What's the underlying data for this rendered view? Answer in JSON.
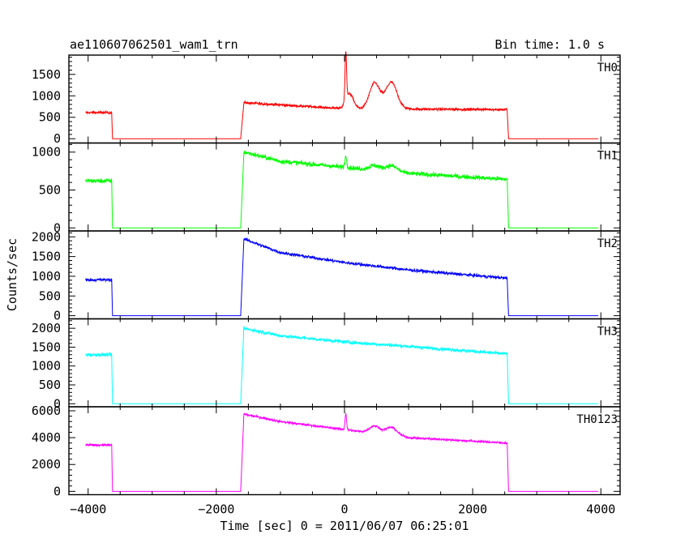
{
  "chart_data": {
    "type": "line",
    "title": "ae110607062501_wam1_trn",
    "bin_time_label": "Bin time: 1.0 s",
    "xlabel": "Time [sec] 0 = 2011/06/07 06:25:01",
    "ylabel": "Counts/sec",
    "xlim": [
      -4300,
      4300
    ],
    "x_ticks": [
      -4000,
      -2000,
      0,
      2000,
      4000
    ],
    "x_tick_labels": [
      "−4000",
      "−2000",
      "0",
      "2000",
      "4000"
    ],
    "grid": false,
    "panels": [
      {
        "name": "TH0",
        "color": "#ff0000",
        "ylim": [
          -100,
          1950
        ],
        "y_ticks": [
          0,
          500,
          1000,
          1500
        ],
        "noise": 30,
        "segments": [
          {
            "x": [
              -4040,
              -3630
            ],
            "y": [
              610,
              610
            ]
          },
          {
            "x": [
              -3620,
              -1600
            ],
            "y": [
              0,
              0
            ]
          },
          {
            "x": [
              -1570,
              0,
              2540
            ],
            "y": [
              840,
              700,
              680
            ]
          },
          {
            "x": [
              2560,
              4000
            ],
            "y": [
              0,
              0
            ]
          }
        ],
        "peaks": [
          {
            "x": 20,
            "amp": 1150,
            "width": 12
          },
          {
            "x": 80,
            "amp": 350,
            "width": 60
          },
          {
            "x": 470,
            "amp": 600,
            "width": 80
          },
          {
            "x": 730,
            "amp": 620,
            "width": 90
          }
        ]
      },
      {
        "name": "TH1",
        "color": "#00ff00",
        "ylim": [
          -40,
          1120
        ],
        "y_ticks": [
          0,
          500,
          1000
        ],
        "noise": 30,
        "segments": [
          {
            "x": [
              -4040,
              -3630
            ],
            "y": [
              620,
              620
            ]
          },
          {
            "x": [
              -3620,
              -1600
            ],
            "y": [
              0,
              0
            ]
          },
          {
            "x": [
              -1570,
              -1000,
              0,
              1000,
              2540
            ],
            "y": [
              1000,
              880,
              800,
              720,
              640
            ]
          },
          {
            "x": [
              2560,
              4000
            ],
            "y": [
              0,
              0
            ]
          }
        ],
        "peaks": [
          {
            "x": 20,
            "amp": 140,
            "width": 15
          },
          {
            "x": 470,
            "amp": 60,
            "width": 80
          },
          {
            "x": 730,
            "amp": 80,
            "width": 90
          }
        ]
      },
      {
        "name": "TH2",
        "color": "#0000ff",
        "ylim": [
          -80,
          2150
        ],
        "y_ticks": [
          0,
          500,
          1000,
          1500,
          2000
        ],
        "noise": 40,
        "segments": [
          {
            "x": [
              -4040,
              -3630
            ],
            "y": [
              910,
              910
            ]
          },
          {
            "x": [
              -3620,
              -1600
            ],
            "y": [
              0,
              0
            ]
          },
          {
            "x": [
              -1570,
              -1000,
              0,
              1000,
              2540
            ],
            "y": [
              1950,
              1600,
              1350,
              1160,
              950
            ]
          },
          {
            "x": [
              2560,
              4000
            ],
            "y": [
              0,
              0
            ]
          }
        ],
        "peaks": []
      },
      {
        "name": "TH3",
        "color": "#00ffff",
        "ylim": [
          -80,
          2250
        ],
        "y_ticks": [
          0,
          500,
          1000,
          1500,
          2000
        ],
        "noise": 45,
        "segments": [
          {
            "x": [
              -4040,
              -3630
            ],
            "y": [
              1300,
              1300
            ]
          },
          {
            "x": [
              -3620,
              -1600
            ],
            "y": [
              0,
              0
            ]
          },
          {
            "x": [
              -1570,
              -1000,
              0,
              1000,
              2540
            ],
            "y": [
              2000,
              1800,
              1640,
              1520,
              1320
            ]
          },
          {
            "x": [
              2560,
              4000
            ],
            "y": [
              0,
              0
            ]
          }
        ],
        "peaks": []
      },
      {
        "name": "TH0123",
        "color": "#ff00ff",
        "ylim": [
          -250,
          6300
        ],
        "y_ticks": [
          0,
          2000,
          4000,
          6000
        ],
        "noise": 80,
        "segments": [
          {
            "x": [
              -4040,
              -3630
            ],
            "y": [
              3450,
              3450
            ]
          },
          {
            "x": [
              -3620,
              -1600
            ],
            "y": [
              0,
              0
            ]
          },
          {
            "x": [
              -1570,
              -1000,
              0,
              1000,
              2540
            ],
            "y": [
              5750,
              5200,
              4600,
              4000,
              3600
            ]
          },
          {
            "x": [
              2560,
              4000
            ],
            "y": [
              0,
              0
            ]
          }
        ],
        "peaks": [
          {
            "x": 20,
            "amp": 1200,
            "width": 12
          },
          {
            "x": 470,
            "amp": 550,
            "width": 80
          },
          {
            "x": 730,
            "amp": 600,
            "width": 90
          }
        ]
      }
    ]
  }
}
